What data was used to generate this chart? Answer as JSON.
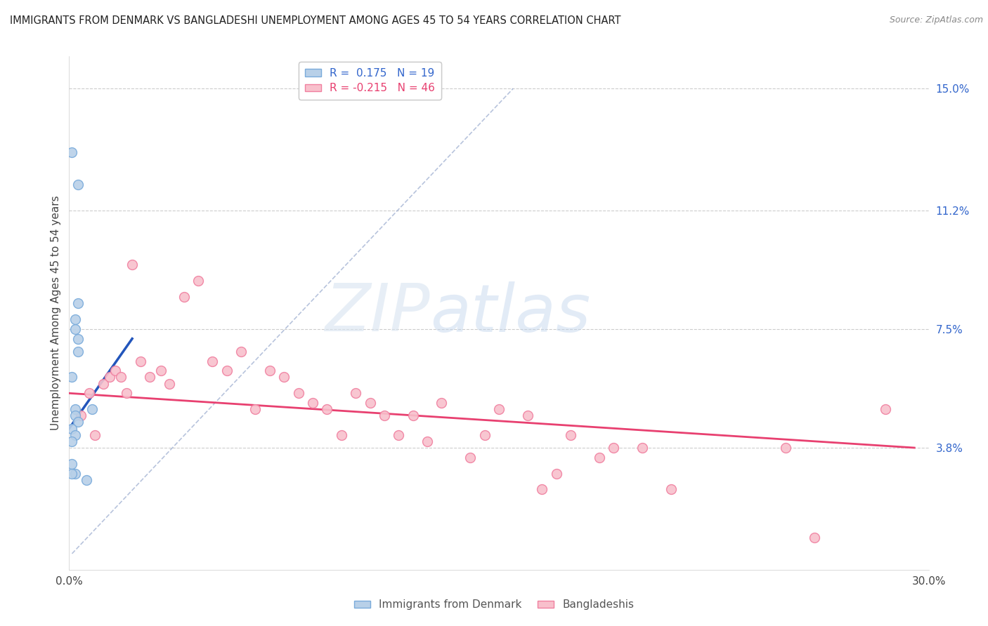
{
  "title": "IMMIGRANTS FROM DENMARK VS BANGLADESHI UNEMPLOYMENT AMONG AGES 45 TO 54 YEARS CORRELATION CHART",
  "source": "Source: ZipAtlas.com",
  "ylabel": "Unemployment Among Ages 45 to 54 years",
  "xlim": [
    0.0,
    0.3
  ],
  "ylim": [
    0.0,
    0.16
  ],
  "x_ticks": [
    0.0,
    0.05,
    0.1,
    0.15,
    0.2,
    0.25,
    0.3
  ],
  "x_tick_labels": [
    "0.0%",
    "",
    "",
    "",
    "",
    "",
    "30.0%"
  ],
  "y_ticks_right": [
    0.038,
    0.075,
    0.112,
    0.15
  ],
  "y_tick_labels_right": [
    "3.8%",
    "7.5%",
    "11.2%",
    "15.0%"
  ],
  "watermark_zip": "ZIP",
  "watermark_atlas": "atlas",
  "legend_blue_r": " 0.175",
  "legend_blue_n": "19",
  "legend_pink_r": "-0.215",
  "legend_pink_n": "46",
  "blue_scatter_x": [
    0.001,
    0.003,
    0.002,
    0.001,
    0.002,
    0.003,
    0.002,
    0.003,
    0.001,
    0.002,
    0.003,
    0.001,
    0.002,
    0.001,
    0.003,
    0.002,
    0.001,
    0.008,
    0.006
  ],
  "blue_scatter_y": [
    0.13,
    0.12,
    0.05,
    0.06,
    0.048,
    0.046,
    0.075,
    0.068,
    0.044,
    0.042,
    0.072,
    0.04,
    0.03,
    0.03,
    0.083,
    0.078,
    0.033,
    0.05,
    0.028
  ],
  "pink_scatter_x": [
    0.004,
    0.007,
    0.009,
    0.012,
    0.014,
    0.016,
    0.018,
    0.02,
    0.022,
    0.025,
    0.028,
    0.032,
    0.035,
    0.04,
    0.045,
    0.05,
    0.055,
    0.06,
    0.065,
    0.07,
    0.075,
    0.08,
    0.085,
    0.09,
    0.095,
    0.1,
    0.105,
    0.11,
    0.115,
    0.12,
    0.125,
    0.13,
    0.14,
    0.145,
    0.15,
    0.16,
    0.165,
    0.17,
    0.175,
    0.185,
    0.19,
    0.2,
    0.21,
    0.25,
    0.26,
    0.285
  ],
  "pink_scatter_y": [
    0.048,
    0.055,
    0.042,
    0.058,
    0.06,
    0.062,
    0.06,
    0.055,
    0.095,
    0.065,
    0.06,
    0.062,
    0.058,
    0.085,
    0.09,
    0.065,
    0.062,
    0.068,
    0.05,
    0.062,
    0.06,
    0.055,
    0.052,
    0.05,
    0.042,
    0.055,
    0.052,
    0.048,
    0.042,
    0.048,
    0.04,
    0.052,
    0.035,
    0.042,
    0.05,
    0.048,
    0.025,
    0.03,
    0.042,
    0.035,
    0.038,
    0.038,
    0.025,
    0.038,
    0.01,
    0.05
  ],
  "blue_line_x": [
    0.0,
    0.022
  ],
  "blue_line_y": [
    0.044,
    0.072
  ],
  "pink_line_x": [
    0.0,
    0.295
  ],
  "pink_line_y": [
    0.055,
    0.038
  ],
  "dashed_line_x": [
    0.001,
    0.155
  ],
  "dashed_line_y": [
    0.005,
    0.15
  ],
  "scatter_size": 100,
  "blue_color": "#b8d0e8",
  "blue_edge_color": "#7aabdb",
  "pink_color": "#f8c0cc",
  "pink_edge_color": "#f080a0",
  "blue_line_color": "#2255bb",
  "pink_line_color": "#e84070",
  "dashed_line_color": "#99aace",
  "background_color": "#ffffff",
  "grid_color": "#cccccc"
}
